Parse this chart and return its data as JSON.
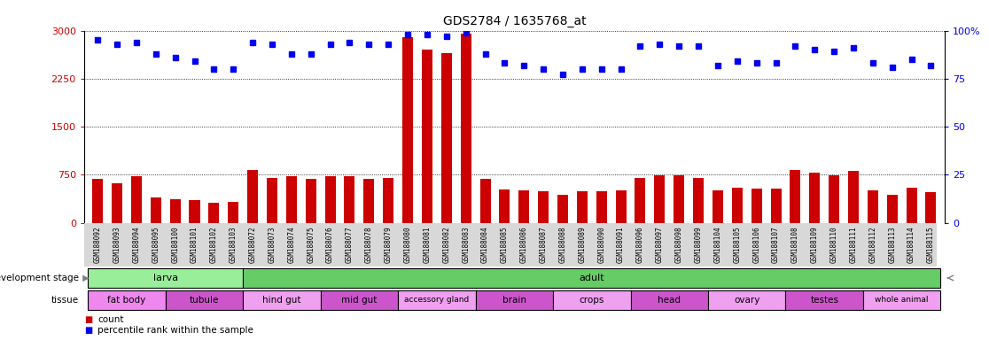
{
  "title": "GDS2784 / 1635768_at",
  "samples": [
    "GSM188092",
    "GSM188093",
    "GSM188094",
    "GSM188095",
    "GSM188100",
    "GSM188101",
    "GSM188102",
    "GSM188103",
    "GSM188072",
    "GSM188073",
    "GSM188074",
    "GSM188075",
    "GSM188076",
    "GSM188077",
    "GSM188078",
    "GSM188079",
    "GSM188080",
    "GSM188081",
    "GSM188082",
    "GSM188083",
    "GSM188084",
    "GSM188085",
    "GSM188086",
    "GSM188087",
    "GSM188088",
    "GSM188089",
    "GSM188090",
    "GSM188091",
    "GSM188096",
    "GSM188097",
    "GSM188098",
    "GSM188099",
    "GSM188104",
    "GSM188105",
    "GSM188106",
    "GSM188107",
    "GSM188108",
    "GSM188109",
    "GSM188110",
    "GSM188111",
    "GSM188112",
    "GSM188113",
    "GSM188114",
    "GSM188115"
  ],
  "counts": [
    680,
    620,
    730,
    390,
    370,
    350,
    310,
    320,
    820,
    700,
    720,
    680,
    730,
    720,
    690,
    700,
    2900,
    2700,
    2650,
    2950,
    680,
    520,
    500,
    490,
    430,
    490,
    490,
    500,
    700,
    740,
    740,
    700,
    510,
    540,
    530,
    530,
    820,
    780,
    740,
    810,
    510,
    430,
    540,
    480
  ],
  "percentile": [
    95,
    93,
    94,
    88,
    86,
    84,
    80,
    80,
    94,
    93,
    88,
    88,
    93,
    94,
    93,
    93,
    98,
    98,
    97,
    99,
    88,
    83,
    82,
    80,
    77,
    80,
    80,
    80,
    92,
    93,
    92,
    92,
    82,
    84,
    83,
    83,
    92,
    90,
    89,
    91,
    83,
    81,
    85,
    82
  ],
  "ylim_left": [
    0,
    3000
  ],
  "ylim_right": [
    0,
    100
  ],
  "yticks_left": [
    0,
    750,
    1500,
    2250,
    3000
  ],
  "yticks_right": [
    0,
    25,
    50,
    75,
    100
  ],
  "bar_color": "#cc0000",
  "dot_color": "#0000ee",
  "dev_stage_groups": [
    {
      "label": "larva",
      "start": 0,
      "end": 8,
      "color": "#99ee99"
    },
    {
      "label": "adult",
      "start": 8,
      "end": 44,
      "color": "#66cc66"
    }
  ],
  "tissue_groups": [
    {
      "label": "fat body",
      "start": 0,
      "end": 4,
      "color": "#ee88ee"
    },
    {
      "label": "tubule",
      "start": 4,
      "end": 8,
      "color": "#cc55cc"
    },
    {
      "label": "hind gut",
      "start": 8,
      "end": 12,
      "color": "#f0a0f0"
    },
    {
      "label": "mid gut",
      "start": 12,
      "end": 16,
      "color": "#cc55cc"
    },
    {
      "label": "accessory gland",
      "start": 16,
      "end": 20,
      "color": "#f0a0f0"
    },
    {
      "label": "brain",
      "start": 20,
      "end": 24,
      "color": "#cc55cc"
    },
    {
      "label": "crops",
      "start": 24,
      "end": 28,
      "color": "#f0a0f0"
    },
    {
      "label": "head",
      "start": 28,
      "end": 32,
      "color": "#cc55cc"
    },
    {
      "label": "ovary",
      "start": 32,
      "end": 36,
      "color": "#f0a0f0"
    },
    {
      "label": "testes",
      "start": 36,
      "end": 40,
      "color": "#cc55cc"
    },
    {
      "label": "whole animal",
      "start": 40,
      "end": 44,
      "color": "#f0a0f0"
    }
  ],
  "background_color": "#ffffff",
  "label_color_left": "#cc0000",
  "label_color_right": "#0000ee",
  "bar_width": 0.55
}
